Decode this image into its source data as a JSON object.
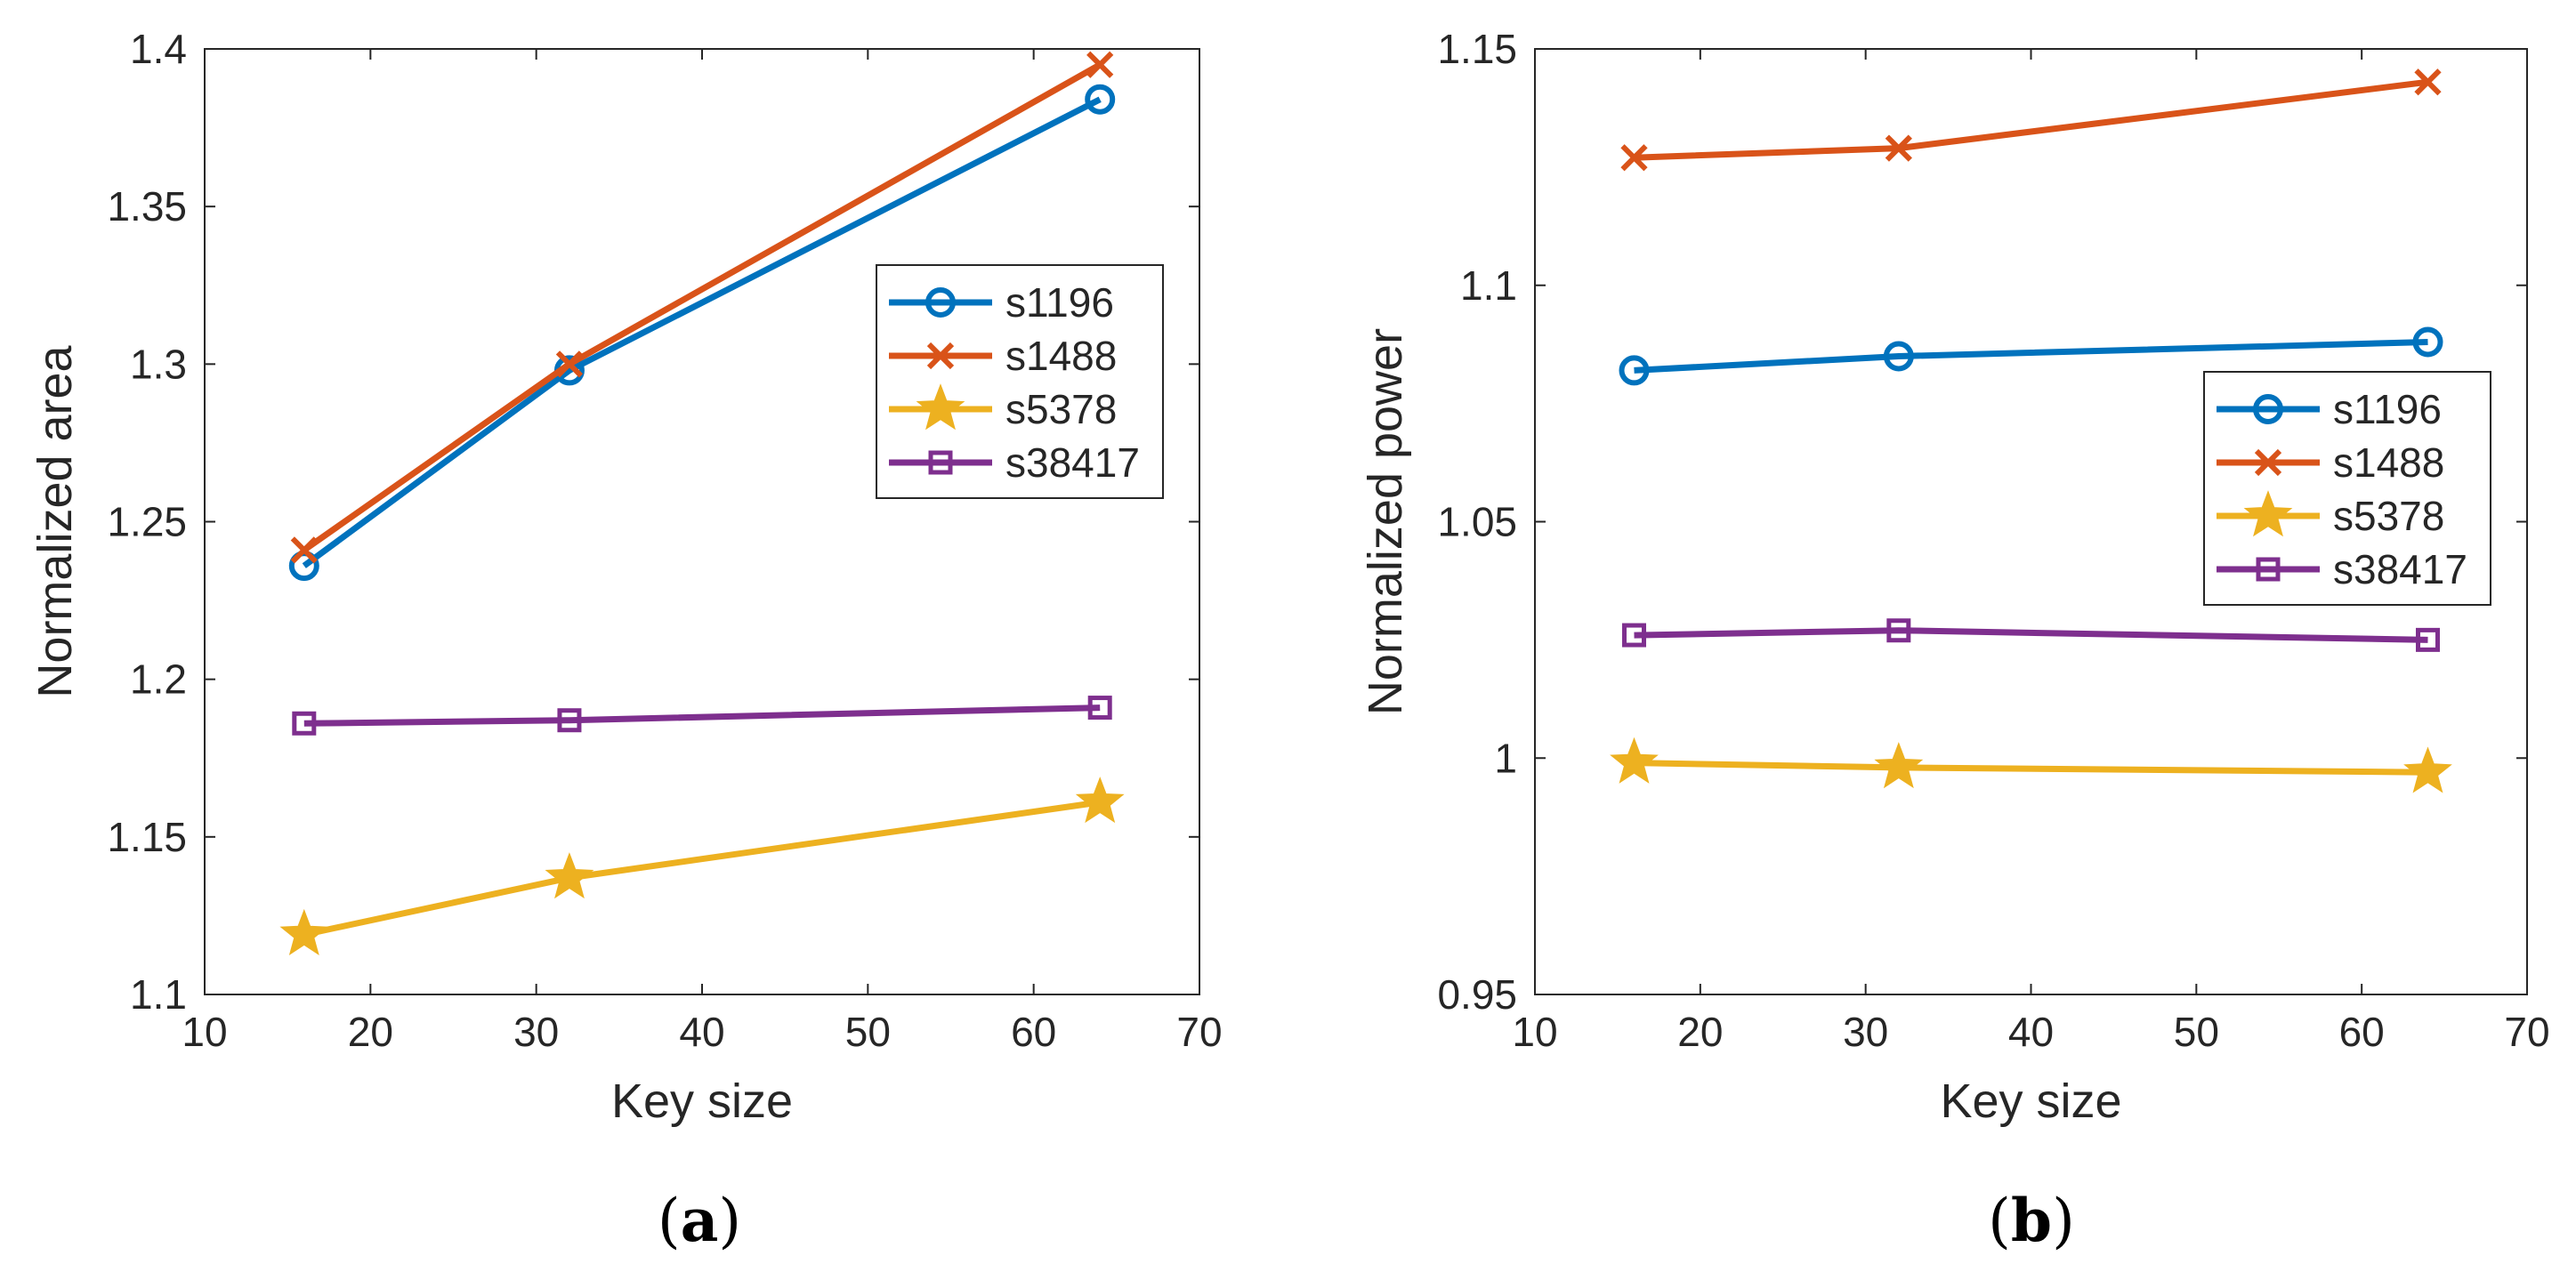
{
  "colors": {
    "s1196": "#0072BD",
    "s1488": "#D95319",
    "s5378": "#EDB120",
    "s38417": "#7E2F8E"
  },
  "chart_data": [
    {
      "type": "line",
      "caption": "a",
      "xlabel": "Key size",
      "ylabel": "Normalized area",
      "xlim": [
        10,
        70
      ],
      "ylim": [
        1.1,
        1.4
      ],
      "xticks": [
        "10",
        "20",
        "30",
        "40",
        "50",
        "60",
        "70"
      ],
      "yticks": [
        "1.1",
        "1.15",
        "1.2",
        "1.25",
        "1.3",
        "1.35",
        "1.4"
      ],
      "x": [
        16,
        32,
        64
      ],
      "legend_position": "middle-right",
      "series": [
        {
          "name": "s1196",
          "marker": "circle",
          "values": [
            1.236,
            1.298,
            1.384
          ]
        },
        {
          "name": "s1488",
          "marker": "x",
          "values": [
            1.241,
            1.3,
            1.395
          ]
        },
        {
          "name": "s5378",
          "marker": "star",
          "values": [
            1.119,
            1.137,
            1.161
          ]
        },
        {
          "name": "s38417",
          "marker": "square",
          "values": [
            1.186,
            1.187,
            1.191
          ]
        }
      ]
    },
    {
      "type": "line",
      "caption": "b",
      "xlabel": "Key size",
      "ylabel": "Normalized power",
      "xlim": [
        10,
        70
      ],
      "ylim": [
        0.95,
        1.15
      ],
      "xticks": [
        "10",
        "20",
        "30",
        "40",
        "50",
        "60",
        "70"
      ],
      "yticks": [
        "0.95",
        "1",
        "1.05",
        "1.1",
        "1.15"
      ],
      "x": [
        16,
        32,
        64
      ],
      "legend_position": "middle-right",
      "series": [
        {
          "name": "s1196",
          "marker": "circle",
          "values": [
            1.082,
            1.085,
            1.088
          ]
        },
        {
          "name": "s1488",
          "marker": "x",
          "values": [
            1.127,
            1.129,
            1.143
          ]
        },
        {
          "name": "s5378",
          "marker": "star",
          "values": [
            0.999,
            0.998,
            0.997
          ]
        },
        {
          "name": "s38417",
          "marker": "square",
          "values": [
            1.026,
            1.027,
            1.025
          ]
        }
      ]
    }
  ]
}
